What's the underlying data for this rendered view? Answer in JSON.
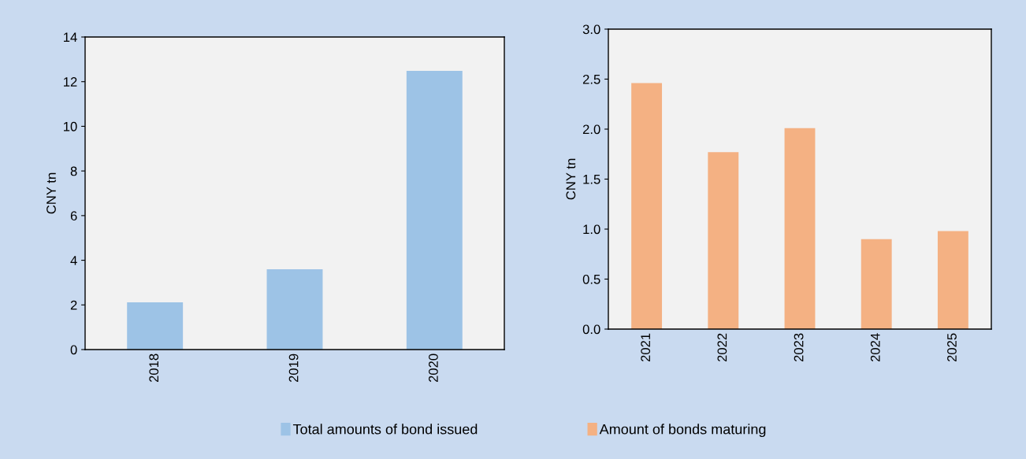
{
  "chart_data": [
    {
      "type": "bar",
      "ylabel": "CNY tn",
      "categories": [
        "2018",
        "2019",
        "2020"
      ],
      "ylim": [
        0,
        14
      ],
      "yticks": [
        0,
        2,
        4,
        6,
        8,
        10,
        12,
        14
      ],
      "grid": false,
      "legend": "bottom",
      "series": [
        {
          "name": "Total amounts of bond issued",
          "color": "#9dc3e6",
          "values": [
            2.12,
            3.6,
            12.48
          ]
        }
      ]
    },
    {
      "type": "bar",
      "ylabel": "CNY tn",
      "categories": [
        "2021",
        "2022",
        "2023",
        "2024",
        "2025"
      ],
      "ylim": [
        0,
        3.0
      ],
      "yticks": [
        {
          "value": 0,
          "label": "0.0"
        },
        {
          "value": 0.5,
          "label": "0.5"
        },
        {
          "value": 1,
          "label": "1.0"
        },
        {
          "value": 1.5,
          "label": "1.5"
        },
        {
          "value": 2,
          "label": "2.0"
        },
        {
          "value": 2.5,
          "label": "2.5"
        },
        {
          "value": 3,
          "label": "3.0"
        }
      ],
      "grid": false,
      "legend": "bottom",
      "series": [
        {
          "name": "Amount of bonds maturing",
          "color": "#f4b183",
          "values": [
            2.46,
            1.77,
            2.01,
            0.9,
            0.98
          ]
        }
      ]
    }
  ]
}
